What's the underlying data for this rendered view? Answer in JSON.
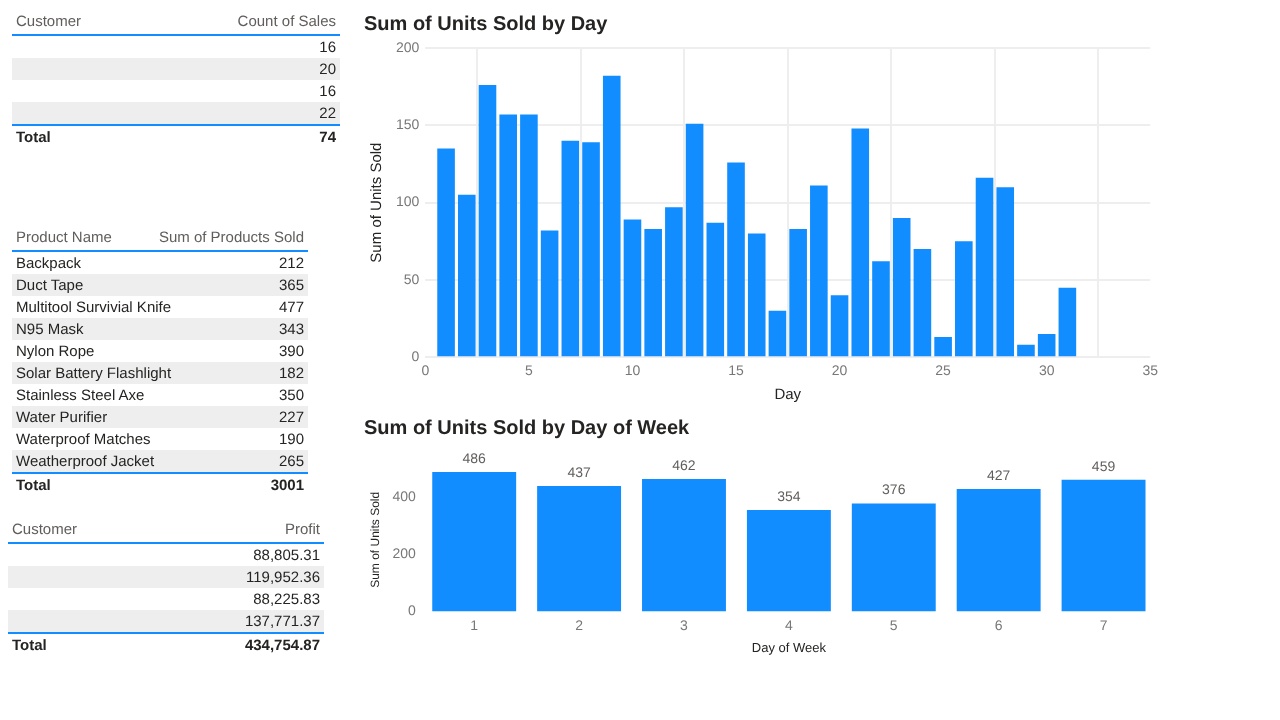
{
  "chart_data": [
    {
      "type": "other",
      "xlabel": "Customer",
      "ylabel": "Count of Sales",
      "categories": [
        null,
        null,
        null,
        null
      ],
      "values": [
        16,
        20,
        16,
        22
      ],
      "data_labels": true,
      "annotations": [
        "Total",
        "74"
      ]
    },
    {
      "type": "other",
      "xlabel": "Product Name",
      "ylabel": "Sum of Products Sold",
      "categories": [
        "Backpack",
        "Duct Tape",
        "Multitool Survivial Knife",
        "N95 Mask",
        "Nylon Rope",
        "Solar Battery Flashlight",
        "Stainless Steel Axe",
        "Water Purifier",
        "Waterproof Matches",
        "Weatherproof Jacket"
      ],
      "values": [
        212,
        365,
        477,
        343,
        390,
        182,
        350,
        227,
        190,
        265
      ],
      "data_labels": true,
      "annotations": [
        "Total",
        "3001"
      ]
    },
    {
      "type": "other",
      "xlabel": "Customer",
      "ylabel": "Profit",
      "categories": [
        null,
        null,
        null,
        null
      ],
      "values": [
        88805.31,
        119952.36,
        88225.83,
        137771.37
      ],
      "value_labels": [
        "88,805.31",
        "119,952.36",
        "88,225.83",
        "137,771.37"
      ],
      "annotations": [
        "Total",
        "434,754.87"
      ]
    },
    {
      "type": "bar",
      "title": "Sum of Units Sold by Day",
      "xlabel": "Day",
      "ylabel": "Sum of Units Sold",
      "color": "#118dff",
      "x": [
        1,
        2,
        3,
        4,
        5,
        6,
        7,
        8,
        9,
        10,
        11,
        12,
        13,
        14,
        15,
        16,
        17,
        18,
        19,
        20,
        21,
        22,
        23,
        24,
        25,
        26,
        27,
        28,
        29,
        30,
        31
      ],
      "values": [
        135,
        105,
        176,
        157,
        157,
        82,
        140,
        139,
        182,
        89,
        83,
        97,
        151,
        87,
        126,
        80,
        30,
        83,
        111,
        40,
        148,
        62,
        90,
        70,
        13,
        75,
        116,
        110,
        8,
        15,
        45
      ],
      "xlim": [
        0,
        35
      ],
      "xticks": [
        0,
        5,
        10,
        15,
        20,
        25,
        30,
        35
      ],
      "ylim": [
        0,
        200
      ],
      "yticks": [
        0,
        50,
        100,
        150,
        200
      ],
      "grid": true
    },
    {
      "type": "bar",
      "title": "Sum of Units Sold by Day of Week",
      "xlabel": "Day of Week",
      "ylabel": "Sum of Units Sold",
      "color": "#118dff",
      "categories": [
        "1",
        "2",
        "3",
        "4",
        "5",
        "6",
        "7"
      ],
      "values": [
        486,
        437,
        462,
        354,
        376,
        427,
        459
      ],
      "ylim": [
        0,
        500
      ],
      "yticks": [
        0,
        200,
        400
      ],
      "data_labels": true
    }
  ]
}
